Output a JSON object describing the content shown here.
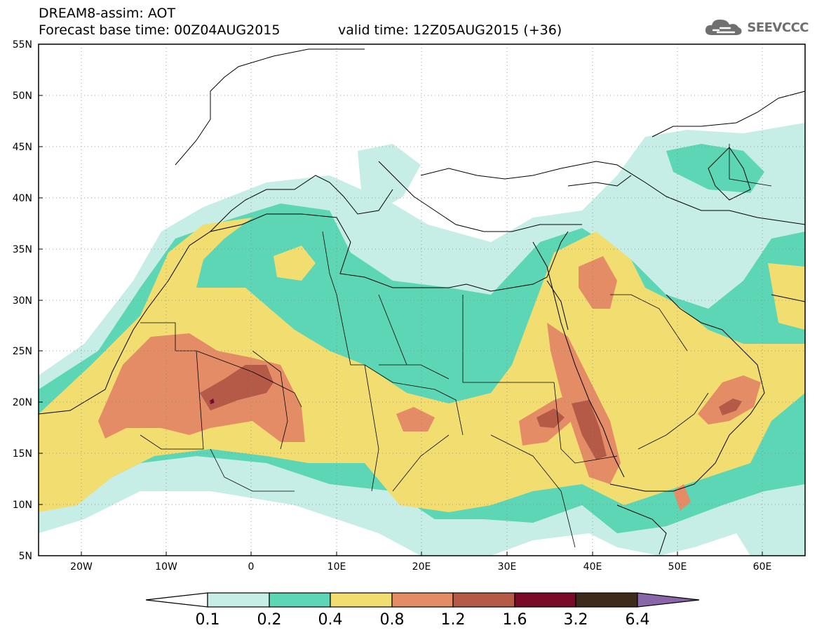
{
  "header": {
    "title": "DREAM8-assim: AOT",
    "base_time": "Forecast base time: 00Z04AUG2015",
    "valid_time": "valid time: 12Z05AUG2015 (+36)",
    "logo_text": "SEEVCCC"
  },
  "map": {
    "variable": "AOT",
    "lon_range": [
      -25,
      65
    ],
    "lat_range": [
      5,
      55
    ],
    "lat_ticks": [
      "55N",
      "50N",
      "45N",
      "40N",
      "35N",
      "30N",
      "25N",
      "20N",
      "15N",
      "10N",
      "5N"
    ],
    "lon_ticks": [
      "20W",
      "10W",
      "0",
      "10E",
      "20E",
      "30E",
      "40E",
      "50E",
      "60E"
    ],
    "colors": {
      "c1": "#c6eee6",
      "c2": "#5cd6b4",
      "c3": "#f2dd70",
      "c4": "#e48c66",
      "c5": "#b45a46",
      "c6": "#7a0a28",
      "c7": "#3e2a1a",
      "c8": "#8a66a8"
    }
  },
  "colorbar": {
    "labels": [
      "0.1",
      "0.2",
      "0.4",
      "0.8",
      "1.2",
      "1.6",
      "3.2",
      "6.4"
    ],
    "colors": [
      "#ffffff",
      "#c6eee6",
      "#5cd6b4",
      "#f2dd70",
      "#e48c66",
      "#b45a46",
      "#7a0a28",
      "#3e2a1a",
      "#8a66a8"
    ]
  }
}
